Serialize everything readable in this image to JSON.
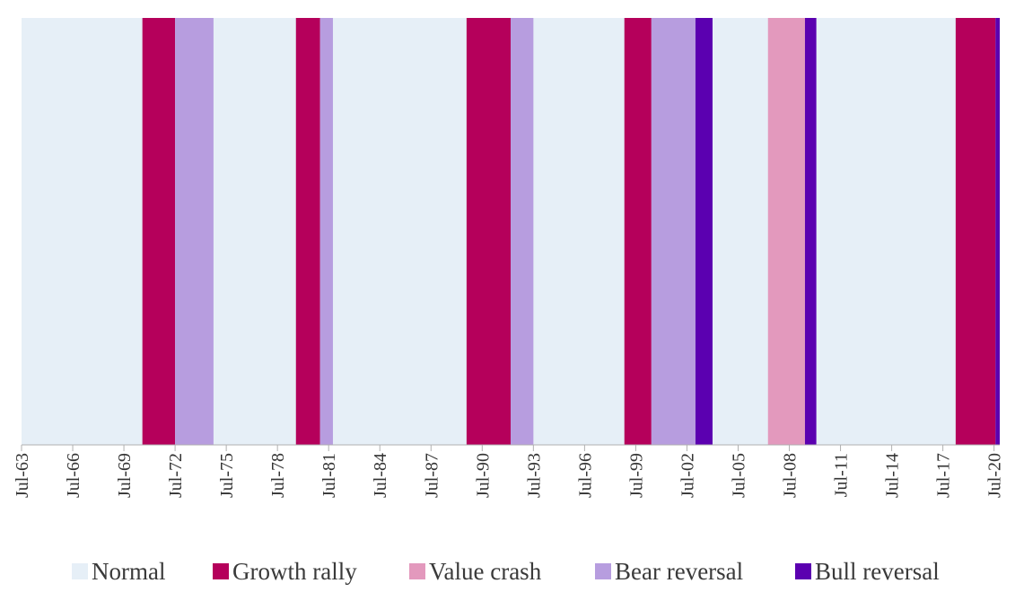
{
  "chart_data": {
    "type": "timeline-bands",
    "categories": [
      "Normal",
      "Growth rally",
      "Value crash",
      "Bear reversal",
      "Bull reversal"
    ],
    "colors": {
      "Normal": "#e6eff7",
      "Growth rally": "#b5005b",
      "Value crash": "#e399bd",
      "Bear reversal": "#b79ddf",
      "Bull reversal": "#5b00b0"
    },
    "x_range": [
      "1963-07",
      "2020-11"
    ],
    "x_ticks": [
      "Jul-63",
      "Jul-66",
      "Jul-69",
      "Jul-72",
      "Jul-75",
      "Jul-78",
      "Jul-81",
      "Jul-84",
      "Jul-87",
      "Jul-90",
      "Jul-93",
      "Jul-96",
      "Jul-99",
      "Jul-02",
      "Jul-05",
      "Jul-08",
      "Jul-11",
      "Jul-14",
      "Jul-17",
      "Jul-20"
    ],
    "periods": [
      {
        "regime": "Growth rally",
        "start": "1970-08",
        "end": "1972-07"
      },
      {
        "regime": "Bear reversal",
        "start": "1972-07",
        "end": "1974-10"
      },
      {
        "regime": "Growth rally",
        "start": "1979-08",
        "end": "1981-01"
      },
      {
        "regime": "Bear reversal",
        "start": "1981-01",
        "end": "1981-10"
      },
      {
        "regime": "Growth rally",
        "start": "1989-08",
        "end": "1992-03"
      },
      {
        "regime": "Bear reversal",
        "start": "1992-03",
        "end": "1993-07"
      },
      {
        "regime": "Growth rally",
        "start": "1998-11",
        "end": "2000-06"
      },
      {
        "regime": "Bear reversal",
        "start": "2000-06",
        "end": "2003-01"
      },
      {
        "regime": "Bull reversal",
        "start": "2003-01",
        "end": "2004-01"
      },
      {
        "regime": "Value crash",
        "start": "2007-04",
        "end": "2009-06"
      },
      {
        "regime": "Bull reversal",
        "start": "2009-06",
        "end": "2010-02"
      },
      {
        "regime": "Growth rally",
        "start": "2018-04",
        "end": "2020-08"
      },
      {
        "regime": "Bull reversal",
        "start": "2020-08",
        "end": "2021-02"
      }
    ],
    "legend": [
      "Normal",
      "Growth rally",
      "Value crash",
      "Bear reversal",
      "Bull reversal"
    ],
    "legend_position": "bottom"
  }
}
